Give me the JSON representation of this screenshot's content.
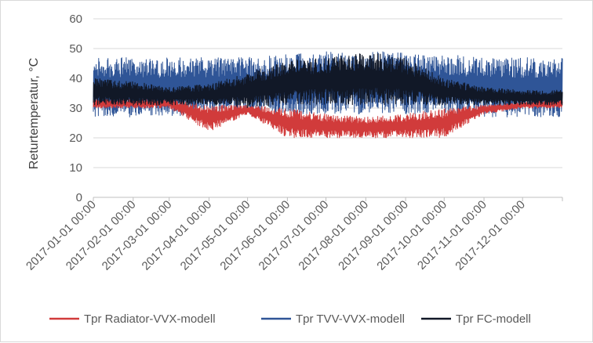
{
  "chart_data": {
    "type": "line",
    "title": "",
    "xlabel": "",
    "ylabel": "Returtemperatur, °C",
    "ylim": [
      0,
      60
    ],
    "yticks": [
      0,
      10,
      20,
      30,
      40,
      50,
      60
    ],
    "xlim": [
      "2017-01-01 00:00",
      "2017-12-31 23:00"
    ],
    "xticks": [
      "2017-01-01 00:00",
      "2017-02-01 00:00",
      "2017-03-01 00:00",
      "2017-04-01 00:00",
      "2017-05-01 00:00",
      "2017-06-01 00:00",
      "2017-07-01 00:00",
      "2017-08-01 00:00",
      "2017-09-01 00:00",
      "2017-10-01 00:00",
      "2017-11-01 00:00",
      "2017-12-01 00:00"
    ],
    "grid": "horizontal",
    "legend_position": "bottom",
    "series": [
      {
        "name": "Tpr Radiator-VVX-modell",
        "color": "#d13b3b",
        "note_values": "approximate monthly min/max band (°C), hourly data",
        "x": [
          "2017-01-01 00:00",
          "2017-02-01 00:00",
          "2017-03-01 00:00",
          "2017-04-01 00:00",
          "2017-05-01 00:00",
          "2017-06-01 00:00",
          "2017-07-01 00:00",
          "2017-08-01 00:00",
          "2017-09-01 00:00",
          "2017-10-01 00:00",
          "2017-11-01 00:00",
          "2017-12-01 00:00",
          "2017-12-31 23:00"
        ],
        "low": [
          30,
          30,
          30,
          22,
          28,
          20,
          20,
          20,
          20,
          20,
          28,
          30,
          30
        ],
        "high": [
          33,
          33,
          33,
          31,
          31,
          30,
          28,
          27,
          28,
          30,
          31,
          32,
          33
        ]
      },
      {
        "name": "Tpr TVV-VVX-modell",
        "color": "#2f5597",
        "note_values": "approximate monthly min/max band (°C), hourly data",
        "x": [
          "2017-01-01 00:00",
          "2017-02-01 00:00",
          "2017-03-01 00:00",
          "2017-04-01 00:00",
          "2017-05-01 00:00",
          "2017-06-01 00:00",
          "2017-07-01 00:00",
          "2017-08-01 00:00",
          "2017-09-01 00:00",
          "2017-10-01 00:00",
          "2017-11-01 00:00",
          "2017-12-01 00:00",
          "2017-12-31 23:00"
        ],
        "low": [
          27,
          27,
          27,
          27,
          28,
          28,
          28,
          28,
          28,
          28,
          27,
          27,
          27
        ],
        "high": [
          47,
          47,
          47,
          47,
          47,
          48,
          49,
          49,
          49,
          48,
          47,
          47,
          47
        ]
      },
      {
        "name": "Tpr FC-modell",
        "color": "#111827",
        "note_values": "approximate monthly min/max band (°C), hourly data",
        "x": [
          "2017-01-01 00:00",
          "2017-02-01 00:00",
          "2017-03-01 00:00",
          "2017-04-01 00:00",
          "2017-05-01 00:00",
          "2017-06-01 00:00",
          "2017-07-01 00:00",
          "2017-08-01 00:00",
          "2017-09-01 00:00",
          "2017-10-01 00:00",
          "2017-11-01 00:00",
          "2017-12-01 00:00",
          "2017-12-31 23:00"
        ],
        "low": [
          31,
          31,
          31,
          31,
          30,
          31,
          31,
          31,
          31,
          31,
          31,
          31,
          31
        ],
        "high": [
          40,
          39,
          37,
          38,
          42,
          46,
          47,
          49,
          47,
          40,
          37,
          36,
          36
        ]
      }
    ]
  }
}
